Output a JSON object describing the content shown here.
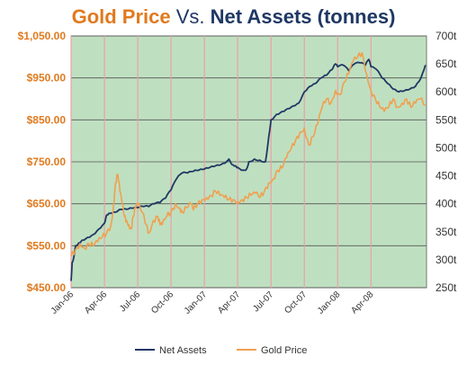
{
  "title": {
    "part1": "Gold Price",
    "part2": " Vs. ",
    "part3": "Net Assets (tonnes)"
  },
  "colors": {
    "gold": "#f0a050",
    "gold_axis": "#e07a1f",
    "net": "#1f3864",
    "plot_bg": "#bfe0c0",
    "vline": "#e8a0a8",
    "hline": "#555555"
  },
  "chart_data": {
    "type": "line",
    "title": "Gold Price Vs. Net Assets (tonnes)",
    "x_ticks": [
      "Jan-06",
      "Apr-06",
      "Jul-06",
      "Oct-06",
      "Jan-07",
      "Apr-07",
      "Jul-07",
      "Oct-07",
      "Jan-08",
      "Apr-08"
    ],
    "y_left": {
      "range": [
        450,
        1050
      ],
      "ticks": [
        "$1,050.00",
        "$950.00",
        "$850.00",
        "$750.00",
        "$650.00",
        "$550.00",
        "$450.00"
      ]
    },
    "y_right": {
      "range": [
        250,
        700
      ],
      "ticks": [
        "700t",
        "650t",
        "600t",
        "550t",
        "500t",
        "450t",
        "400t",
        "350t",
        "300t",
        "250t"
      ]
    },
    "legend_position": "bottom",
    "series": [
      {
        "name": "Net Assets",
        "axis": "right",
        "color": "#1f3864",
        "points": [
          [
            0,
            262
          ],
          [
            0.1,
            295
          ],
          [
            0.25,
            305
          ],
          [
            0.4,
            325
          ],
          [
            0.7,
            330
          ],
          [
            1,
            335
          ],
          [
            1.5,
            340
          ],
          [
            2,
            345
          ],
          [
            2.5,
            355
          ],
          [
            3,
            365
          ],
          [
            3.2,
            380
          ],
          [
            3.5,
            383
          ],
          [
            4,
            385
          ],
          [
            4.5,
            390
          ],
          [
            5,
            390
          ],
          [
            5.5,
            392
          ],
          [
            6,
            393
          ],
          [
            6.5,
            395
          ],
          [
            7,
            395
          ],
          [
            7.5,
            400
          ],
          [
            8,
            402
          ],
          [
            8.5,
            410
          ],
          [
            9,
            425
          ],
          [
            9.5,
            445
          ],
          [
            10,
            455
          ],
          [
            10.5,
            455
          ],
          [
            11,
            458
          ],
          [
            11.5,
            460
          ],
          [
            12,
            462
          ],
          [
            12.5,
            465
          ],
          [
            13,
            468
          ],
          [
            13.5,
            470
          ],
          [
            14,
            475
          ],
          [
            14.2,
            480
          ],
          [
            14.5,
            470
          ],
          [
            14.8,
            468
          ],
          [
            15,
            465
          ],
          [
            15.5,
            460
          ],
          [
            15.8,
            462
          ],
          [
            16,
            475
          ],
          [
            16.5,
            480
          ],
          [
            17,
            478
          ],
          [
            17.5,
            475
          ],
          [
            17.8,
            520
          ],
          [
            18,
            550
          ],
          [
            18.5,
            560
          ],
          [
            19,
            565
          ],
          [
            19.5,
            570
          ],
          [
            20,
            575
          ],
          [
            20.5,
            580
          ],
          [
            21,
            600
          ],
          [
            21.5,
            610
          ],
          [
            22,
            615
          ],
          [
            22.5,
            625
          ],
          [
            23,
            630
          ],
          [
            23.5,
            640
          ],
          [
            23.8,
            650
          ],
          [
            24,
            645
          ],
          [
            24.5,
            648
          ],
          [
            25,
            638
          ],
          [
            25.5,
            650
          ],
          [
            26,
            652
          ],
          [
            26.5,
            648
          ],
          [
            26.8,
            658
          ],
          [
            27,
            645
          ],
          [
            27.5,
            640
          ],
          [
            28,
            625
          ],
          [
            28.5,
            615
          ],
          [
            29,
            605
          ],
          [
            29.5,
            600
          ],
          [
            30,
            602
          ],
          [
            30.5,
            605
          ],
          [
            31,
            610
          ],
          [
            31.5,
            625
          ],
          [
            31.9,
            648
          ]
        ]
      },
      {
        "name": "Gold Price",
        "axis": "left",
        "color": "#f0a050",
        "points": [
          [
            0,
            525
          ],
          [
            0.4,
            540
          ],
          [
            0.8,
            555
          ],
          [
            1.2,
            545
          ],
          [
            1.6,
            555
          ],
          [
            2,
            550
          ],
          [
            2.4,
            560
          ],
          [
            2.8,
            570
          ],
          [
            3.2,
            580
          ],
          [
            3.6,
            600
          ],
          [
            3.8,
            640
          ],
          [
            4,
            700
          ],
          [
            4.2,
            720
          ],
          [
            4.4,
            680
          ],
          [
            4.6,
            650
          ],
          [
            4.8,
            620
          ],
          [
            5,
            610
          ],
          [
            5.2,
            600
          ],
          [
            5.4,
            590
          ],
          [
            5.6,
            620
          ],
          [
            5.8,
            640
          ],
          [
            6,
            650
          ],
          [
            6.4,
            630
          ],
          [
            6.8,
            600
          ],
          [
            7,
            580
          ],
          [
            7.4,
            610
          ],
          [
            7.8,
            620
          ],
          [
            8,
            600
          ],
          [
            8.2,
            600
          ],
          [
            8.6,
            620
          ],
          [
            9,
            630
          ],
          [
            9.4,
            650
          ],
          [
            9.8,
            640
          ],
          [
            10,
            630
          ],
          [
            10.4,
            640
          ],
          [
            10.8,
            650
          ],
          [
            11,
            635
          ],
          [
            11.4,
            650
          ],
          [
            11.8,
            660
          ],
          [
            12.2,
            665
          ],
          [
            12.6,
            670
          ],
          [
            13,
            680
          ],
          [
            13.4,
            670
          ],
          [
            13.8,
            665
          ],
          [
            14.2,
            660
          ],
          [
            14.6,
            660
          ],
          [
            15,
            655
          ],
          [
            15.4,
            660
          ],
          [
            15.8,
            665
          ],
          [
            16.2,
            670
          ],
          [
            16.6,
            675
          ],
          [
            17,
            665
          ],
          [
            17.4,
            680
          ],
          [
            17.8,
            700
          ],
          [
            18.2,
            710
          ],
          [
            18.6,
            730
          ],
          [
            19,
            735
          ],
          [
            19.4,
            760
          ],
          [
            19.8,
            780
          ],
          [
            20.2,
            800
          ],
          [
            20.6,
            820
          ],
          [
            21,
            830
          ],
          [
            21.4,
            790
          ],
          [
            21.8,
            810
          ],
          [
            22.2,
            840
          ],
          [
            22.6,
            880
          ],
          [
            23,
            900
          ],
          [
            23.4,
            890
          ],
          [
            23.8,
            920
          ],
          [
            24.2,
            910
          ],
          [
            24.6,
            940
          ],
          [
            25,
            960
          ],
          [
            25.4,
            990
          ],
          [
            25.8,
            1000
          ],
          [
            26.2,
            1010
          ],
          [
            26.6,
            960
          ],
          [
            27,
            920
          ],
          [
            27.4,
            900
          ],
          [
            27.8,
            880
          ],
          [
            28.2,
            870
          ],
          [
            28.6,
            880
          ],
          [
            29,
            900
          ],
          [
            29.4,
            880
          ],
          [
            29.8,
            890
          ],
          [
            30.2,
            900
          ],
          [
            30.6,
            880
          ],
          [
            31,
            890
          ],
          [
            31.4,
            900
          ],
          [
            31.9,
            885
          ]
        ]
      }
    ]
  }
}
